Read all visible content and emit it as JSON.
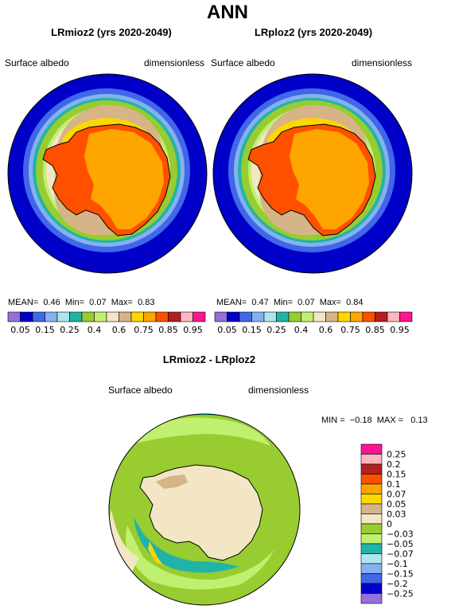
{
  "page_title": "ANN",
  "chart_data": [
    {
      "type": "heatmap",
      "projection": "south-polar-stereographic",
      "title": "LRmioz2 (yrs 2020-2049)",
      "variable": "Surface albedo",
      "units": "dimensionless",
      "stats": {
        "mean_label": "MEAN=",
        "mean": "0.46",
        "min_label": "Min=",
        "min": "0.07",
        "max_label": "Max=",
        "max": "0.83"
      },
      "levels": [
        "0.05",
        "0.15",
        "0.25",
        "0.4",
        "0.6",
        "0.75",
        "0.85",
        "0.95"
      ],
      "colors": [
        "#9370db",
        "#0000c8",
        "#3f67e8",
        "#87b0f0",
        "#aee6ee",
        "#20b4a8",
        "#98cc30",
        "#c0f070",
        "#f2e6c4",
        "#d6b488",
        "#ffd700",
        "#ffa500",
        "#ff5000",
        "#b42020",
        "#ffb6c1",
        "#ff1493"
      ]
    },
    {
      "type": "heatmap",
      "projection": "south-polar-stereographic",
      "title": "LRploz2 (yrs 2020-2049)",
      "variable": "Surface albedo",
      "units": "dimensionless",
      "stats": {
        "mean_label": "MEAN=",
        "mean": "0.47",
        "min_label": "Min=",
        "min": "0.07",
        "max_label": "Max=",
        "max": "0.84"
      },
      "levels": [
        "0.05",
        "0.15",
        "0.25",
        "0.4",
        "0.6",
        "0.75",
        "0.85",
        "0.95"
      ],
      "colors": [
        "#9370db",
        "#0000c8",
        "#3f67e8",
        "#87b0f0",
        "#aee6ee",
        "#20b4a8",
        "#98cc30",
        "#c0f070",
        "#f2e6c4",
        "#d6b488",
        "#ffd700",
        "#ffa500",
        "#ff5000",
        "#b42020",
        "#ffb6c1",
        "#ff1493"
      ]
    },
    {
      "type": "heatmap",
      "projection": "south-polar-stereographic",
      "title": "LRmioz2 - LRploz2",
      "variable": "Surface albedo",
      "units": "dimensionless",
      "stats": {
        "min_label": "MIN =",
        "min": "−0.18",
        "max_label": "MAX =",
        "max": "0.13"
      },
      "levels": [
        "0.25",
        "0.2",
        "0.15",
        "0.1",
        "0.07",
        "0.05",
        "0.03",
        "0",
        "−0.03",
        "−0.05",
        "−0.07",
        "−0.1",
        "−0.15",
        "−0.2",
        "−0.25"
      ],
      "colors": [
        "#ff1493",
        "#ffb6c1",
        "#b42020",
        "#ff5000",
        "#ffa500",
        "#ffd700",
        "#d6b488",
        "#f2e6c4",
        "#98cc30",
        "#c0f070",
        "#20b4a8",
        "#aee6ee",
        "#87b0f0",
        "#3f67e8",
        "#0000c8",
        "#9370db"
      ]
    }
  ]
}
